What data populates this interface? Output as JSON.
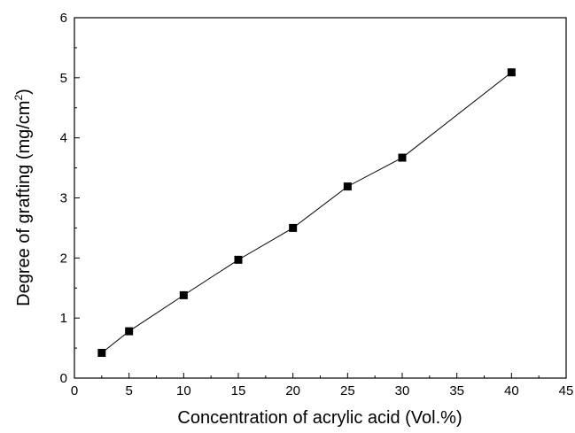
{
  "chart_data": {
    "type": "line",
    "title": "",
    "xlabel": "Concentration of acrylic acid (Vol.%)",
    "ylabel_main": "Degree of grafting (mg/cm",
    "ylabel_sup": "2",
    "ylabel_close": ")",
    "xlim": [
      0,
      45
    ],
    "ylim": [
      0,
      6
    ],
    "x_ticks": [
      "0",
      "5",
      "10",
      "15",
      "20",
      "25",
      "30",
      "35",
      "40",
      "45"
    ],
    "y_ticks": [
      "0",
      "1",
      "2",
      "3",
      "4",
      "5",
      "6"
    ],
    "grid": false,
    "marker": "square",
    "series": [
      {
        "x": [
          2.5,
          5,
          10,
          15,
          20,
          25,
          30,
          40
        ],
        "y": [
          0.42,
          0.78,
          1.38,
          1.97,
          2.5,
          3.19,
          3.67,
          5.09
        ]
      }
    ]
  }
}
